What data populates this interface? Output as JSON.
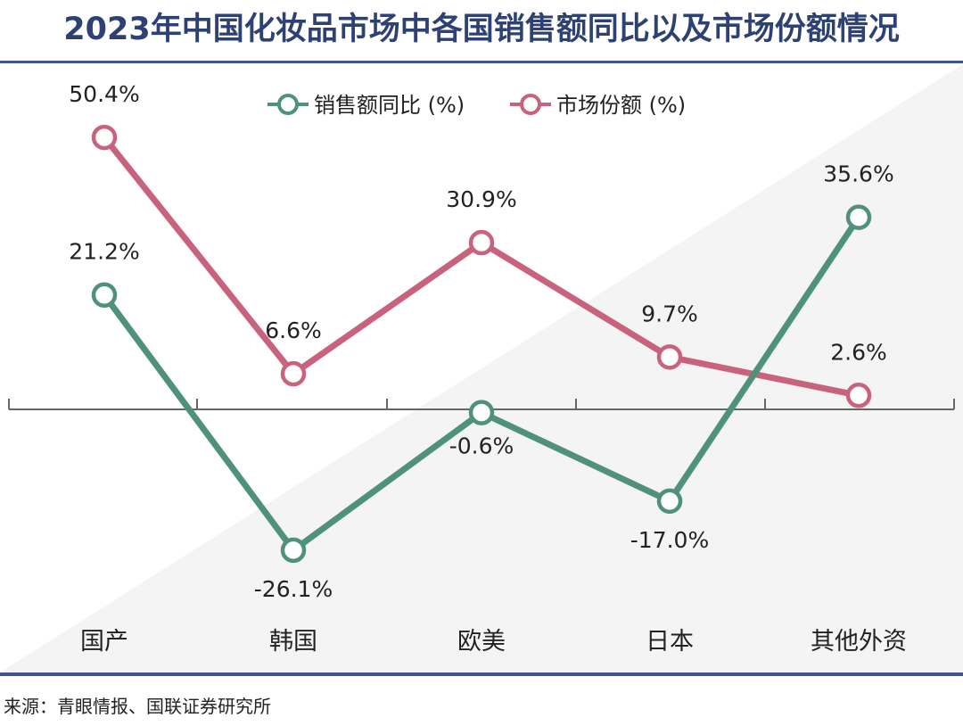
{
  "title": "2023年中国化妆品市场中各国销售额同比以及市场份额情况",
  "source": "来源：青眼情报、国联证券研究所",
  "chart_data": {
    "type": "line",
    "title": "2023年中国化妆品市场中各国销售额同比以及市场份额情况",
    "xlabel": "",
    "ylabel": "",
    "categories": [
      "国产",
      "韩国",
      "欧美",
      "日本",
      "其他外资"
    ],
    "series": [
      {
        "name": "销售额同比 (%)",
        "color": "#4f917a",
        "values": [
          21.2,
          -26.1,
          -0.6,
          -17.0,
          35.6
        ],
        "labels": [
          "21.2%",
          "-26.1%",
          "-0.6%",
          "-17.0%",
          "35.6%"
        ]
      },
      {
        "name": "市场份额 (%)",
        "color": "#c9627c",
        "values": [
          50.4,
          6.6,
          30.9,
          9.7,
          2.6
        ],
        "labels": [
          "50.4%",
          "6.6%",
          "30.9%",
          "9.7%",
          "2.6%"
        ]
      }
    ],
    "ylim": [
      -30,
      55
    ],
    "grid": false,
    "legend_position": "top-center"
  }
}
